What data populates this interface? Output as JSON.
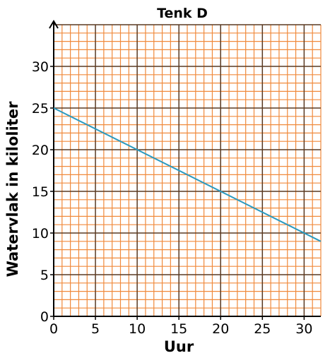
{
  "chart_data": {
    "type": "line",
    "title": "Tenk D",
    "xlabel": "Uur",
    "ylabel": "Watervlak in kiloliter",
    "xlim": [
      0,
      32
    ],
    "ylim": [
      0,
      35
    ],
    "x_ticks": [
      0,
      5,
      10,
      15,
      20,
      25,
      30
    ],
    "y_ticks": [
      0,
      5,
      10,
      15,
      20,
      25,
      30
    ],
    "grid": {
      "on": true,
      "minor_step": 1,
      "major_step": 5,
      "minor_color": "#f08a3c",
      "major_color": "#5a3a22"
    },
    "series": [
      {
        "color": "#2b9ac0",
        "x": [
          0,
          32
        ],
        "y": [
          25,
          9
        ]
      }
    ]
  }
}
